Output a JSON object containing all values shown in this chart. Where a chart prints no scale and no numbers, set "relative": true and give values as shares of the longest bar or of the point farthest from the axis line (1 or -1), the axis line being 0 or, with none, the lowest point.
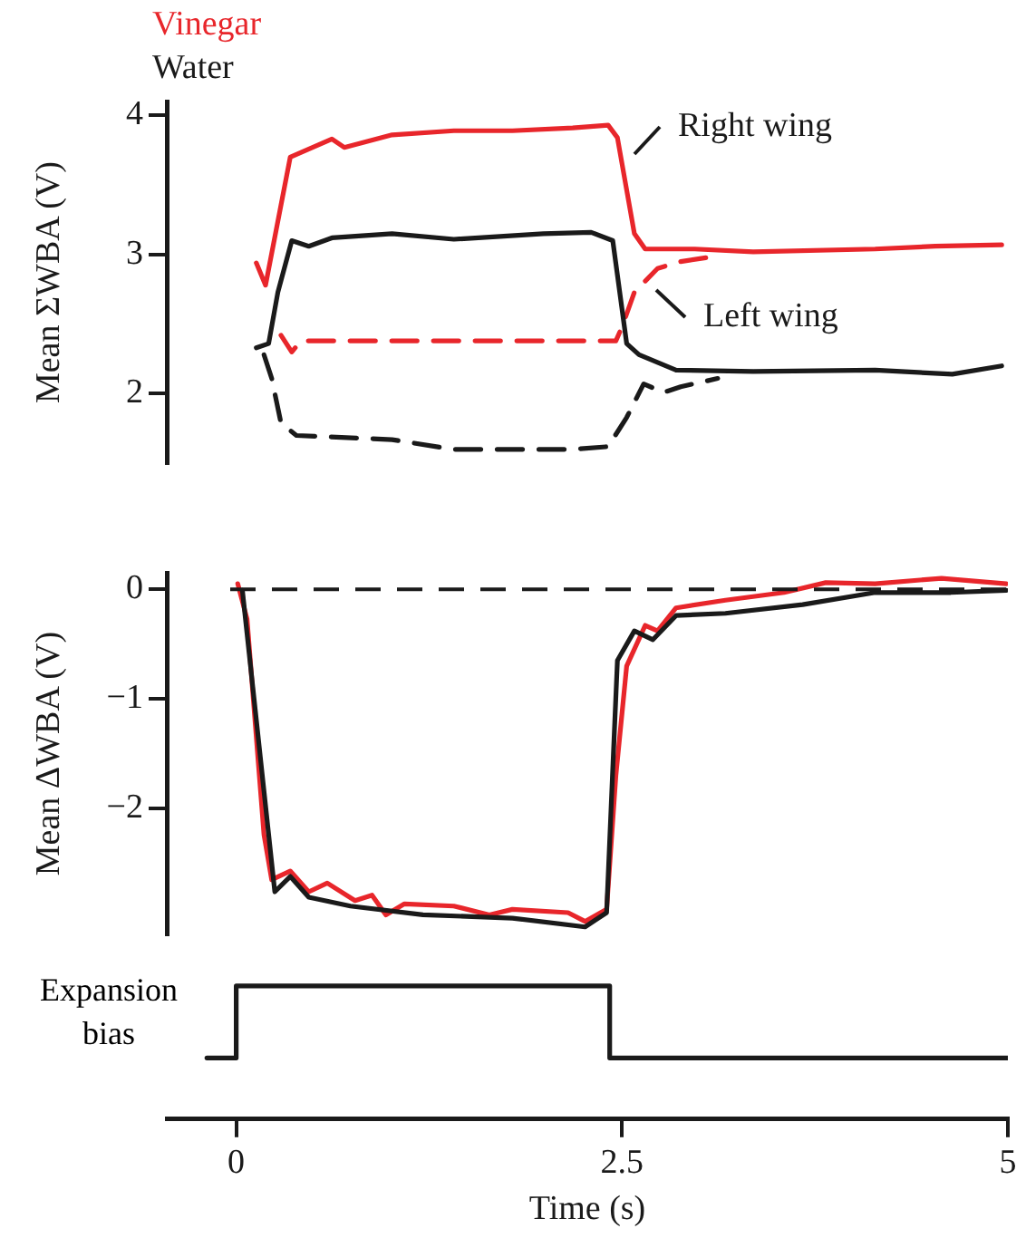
{
  "chart_data": [
    {
      "type": "line",
      "ylabel": "Mean ΣWBA (V)",
      "xlim": [
        -0.45,
        5
      ],
      "ylim": [
        1.5,
        4.1
      ],
      "yticks": [
        2,
        3,
        4
      ],
      "tick_labels": "y",
      "grid": false,
      "legend": "top left",
      "marker": "none",
      "annotations": [
        "Right wing",
        "Left wing"
      ],
      "series": [
        {
          "name": "Vinegar",
          "color": "#e8262b",
          "line_style": "solid",
          "x": [
            0.13,
            0.19,
            0.35,
            0.62,
            0.7,
            1.01,
            1.41,
            1.79,
            2.18,
            2.41,
            2.47,
            2.58,
            2.65,
            2.97,
            3.35,
            4.14,
            4.53,
            4.96
          ],
          "values": [
            2.94,
            2.78,
            3.7,
            3.83,
            3.77,
            3.86,
            3.89,
            3.89,
            3.91,
            3.93,
            3.84,
            3.15,
            3.04,
            3.04,
            3.02,
            3.04,
            3.06,
            3.07
          ]
        },
        {
          "name": "Water",
          "color": "#1a1a1a",
          "line_style": "solid",
          "x": [
            0.13,
            0.21,
            0.27,
            0.36,
            0.47,
            0.62,
            1.01,
            1.41,
            1.99,
            2.3,
            2.44,
            2.53,
            2.61,
            2.85,
            3.35,
            4.14,
            4.64,
            4.96
          ],
          "values": [
            2.33,
            2.36,
            2.73,
            3.1,
            3.06,
            3.12,
            3.15,
            3.11,
            3.15,
            3.16,
            3.1,
            2.36,
            2.28,
            2.17,
            2.16,
            2.17,
            2.14,
            2.2
          ]
        },
        {
          "color": "#e8262b",
          "line_style": "dashed",
          "x": [
            0.29,
            0.36,
            0.42,
            1.0,
            1.8,
            2.46,
            2.5,
            2.58,
            2.73,
            2.88,
            3.06
          ],
          "values": [
            2.42,
            2.3,
            2.38,
            2.38,
            2.38,
            2.38,
            2.48,
            2.73,
            2.9,
            2.95,
            2.98
          ]
        },
        {
          "color": "#1a1a1a",
          "line_style": "dashed",
          "x": [
            0.18,
            0.23,
            0.29,
            0.39,
            1.01,
            1.41,
            2.18,
            2.41,
            2.53,
            2.64,
            2.77,
            2.88,
            3.12
          ],
          "values": [
            2.28,
            2.11,
            1.79,
            1.7,
            1.67,
            1.6,
            1.6,
            1.62,
            1.83,
            2.07,
            2.01,
            2.05,
            2.11
          ]
        }
      ]
    },
    {
      "type": "line",
      "ylabel": "Mean ΔWBA (V)",
      "xlim": [
        -0.45,
        5
      ],
      "ylim": [
        -3.15,
        0.15
      ],
      "yticks": [
        -2,
        -1,
        0
      ],
      "tick_labels": "y",
      "grid": false,
      "marker": "none",
      "ref_lines": [
        {
          "axis": "y",
          "value": 0,
          "color": "#1a1a1a",
          "line_style": "dashed"
        }
      ],
      "series": [
        {
          "color": "#1a1a1a",
          "x": [
            0.04,
            0.25,
            0.35,
            0.47,
            0.74,
            1.21,
            1.79,
            2.26,
            2.4,
            2.47,
            2.58,
            2.7,
            2.85,
            3.17,
            3.67,
            4.14,
            4.63,
            4.99
          ],
          "values": [
            -0.01,
            -2.76,
            -2.62,
            -2.81,
            -2.89,
            -2.97,
            -3.0,
            -3.08,
            -2.95,
            -0.65,
            -0.38,
            -0.46,
            -0.24,
            -0.22,
            -0.14,
            -0.03,
            -0.03,
            -0.01
          ]
        },
        {
          "color": "#e8262b",
          "x": [
            0.01,
            0.07,
            0.18,
            0.23,
            0.35,
            0.47,
            0.59,
            0.77,
            0.88,
            0.97,
            1.09,
            1.41,
            1.64,
            1.79,
            2.15,
            2.26,
            2.4,
            2.46,
            2.53,
            2.65,
            2.73,
            2.85,
            3.17,
            3.55,
            3.82,
            4.14,
            4.57,
            4.99
          ],
          "values": [
            0.05,
            -0.27,
            -2.24,
            -2.65,
            -2.57,
            -2.76,
            -2.68,
            -2.84,
            -2.79,
            -2.97,
            -2.87,
            -2.89,
            -2.97,
            -2.92,
            -2.95,
            -3.03,
            -2.92,
            -1.7,
            -0.7,
            -0.33,
            -0.38,
            -0.17,
            -0.1,
            -0.03,
            0.06,
            0.05,
            0.1,
            0.05
          ]
        }
      ]
    },
    {
      "type": "step",
      "ylabel": "Expansion bias",
      "xlabel": "Time (s)",
      "relative": true,
      "xlim": [
        -0.45,
        5
      ],
      "xticks": [
        0,
        2.5,
        5
      ],
      "tick_labels": "x",
      "grid": false,
      "marker": "none",
      "series": [
        {
          "color": "#1a1a1a",
          "x": [
            -0.19,
            0,
            2.42,
            5.0
          ],
          "values": [
            0,
            1,
            0,
            0
          ]
        }
      ]
    }
  ]
}
